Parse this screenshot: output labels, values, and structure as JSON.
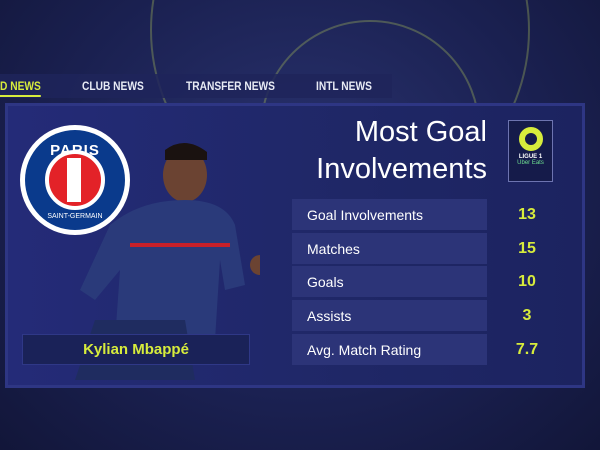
{
  "tabs": [
    {
      "label": "D NEWS",
      "active": true
    },
    {
      "label": "CLUB NEWS"
    },
    {
      "label": "TRANSFER NEWS"
    },
    {
      "label": "INTL NEWS"
    }
  ],
  "club_logo": {
    "text": "PARIS",
    "sub": "SAINT-GERMAIN"
  },
  "player": {
    "name": "Kylian Mbappé"
  },
  "title_line1": "Most Goal",
  "title_line2": "Involvements",
  "league_logo": {
    "line1": "LIGUE 1",
    "line2": "Uber Eats"
  },
  "stats": [
    {
      "label": "Goal Involvements",
      "value": "13"
    },
    {
      "label": "Matches",
      "value": "15"
    },
    {
      "label": "Goals",
      "value": "10"
    },
    {
      "label": "Assists",
      "value": "3"
    },
    {
      "label": "Avg. Match Rating",
      "value": "7.7"
    }
  ],
  "colors": {
    "accent": "#d7ec3c",
    "panel": "#242b78",
    "row": "#2c3478"
  }
}
